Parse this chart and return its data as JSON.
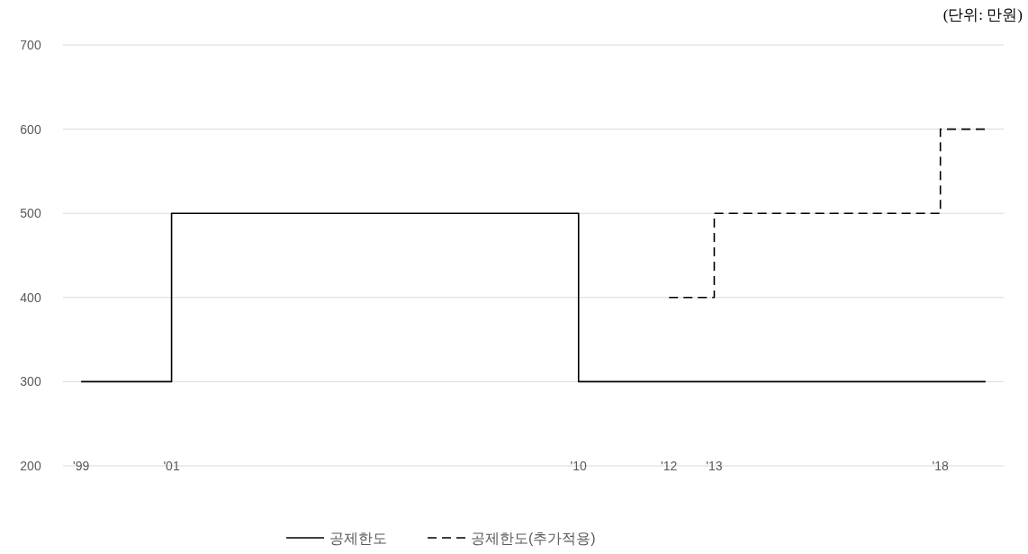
{
  "chart_data": {
    "type": "step",
    "annotations": [
      "(단위: 만원)"
    ],
    "xlim": [
      1998.6,
      2019.4
    ],
    "xticks": [
      {
        "value": 1999,
        "label": "'99"
      },
      {
        "value": 2001,
        "label": "'01"
      },
      {
        "value": 2010,
        "label": "'10"
      },
      {
        "value": 2012,
        "label": "'12"
      },
      {
        "value": 2013,
        "label": "'13"
      },
      {
        "value": 2018,
        "label": "'18"
      }
    ],
    "ylim": [
      200,
      700
    ],
    "yticks": [
      200,
      300,
      400,
      500,
      600,
      700
    ],
    "grid": "y",
    "legend": "bottom",
    "series": [
      {
        "name": "공제한도",
        "color": "#000000",
        "line_style": "solid",
        "x": [
          1999,
          2001,
          2010,
          2019
        ],
        "values": [
          300,
          500,
          300,
          300
        ]
      },
      {
        "name": "공제한도(추가적용)",
        "color": "#000000",
        "line_style": "dashed",
        "x": [
          2012,
          2013,
          2018,
          2019
        ],
        "values": [
          400,
          500,
          600,
          600
        ]
      }
    ]
  }
}
